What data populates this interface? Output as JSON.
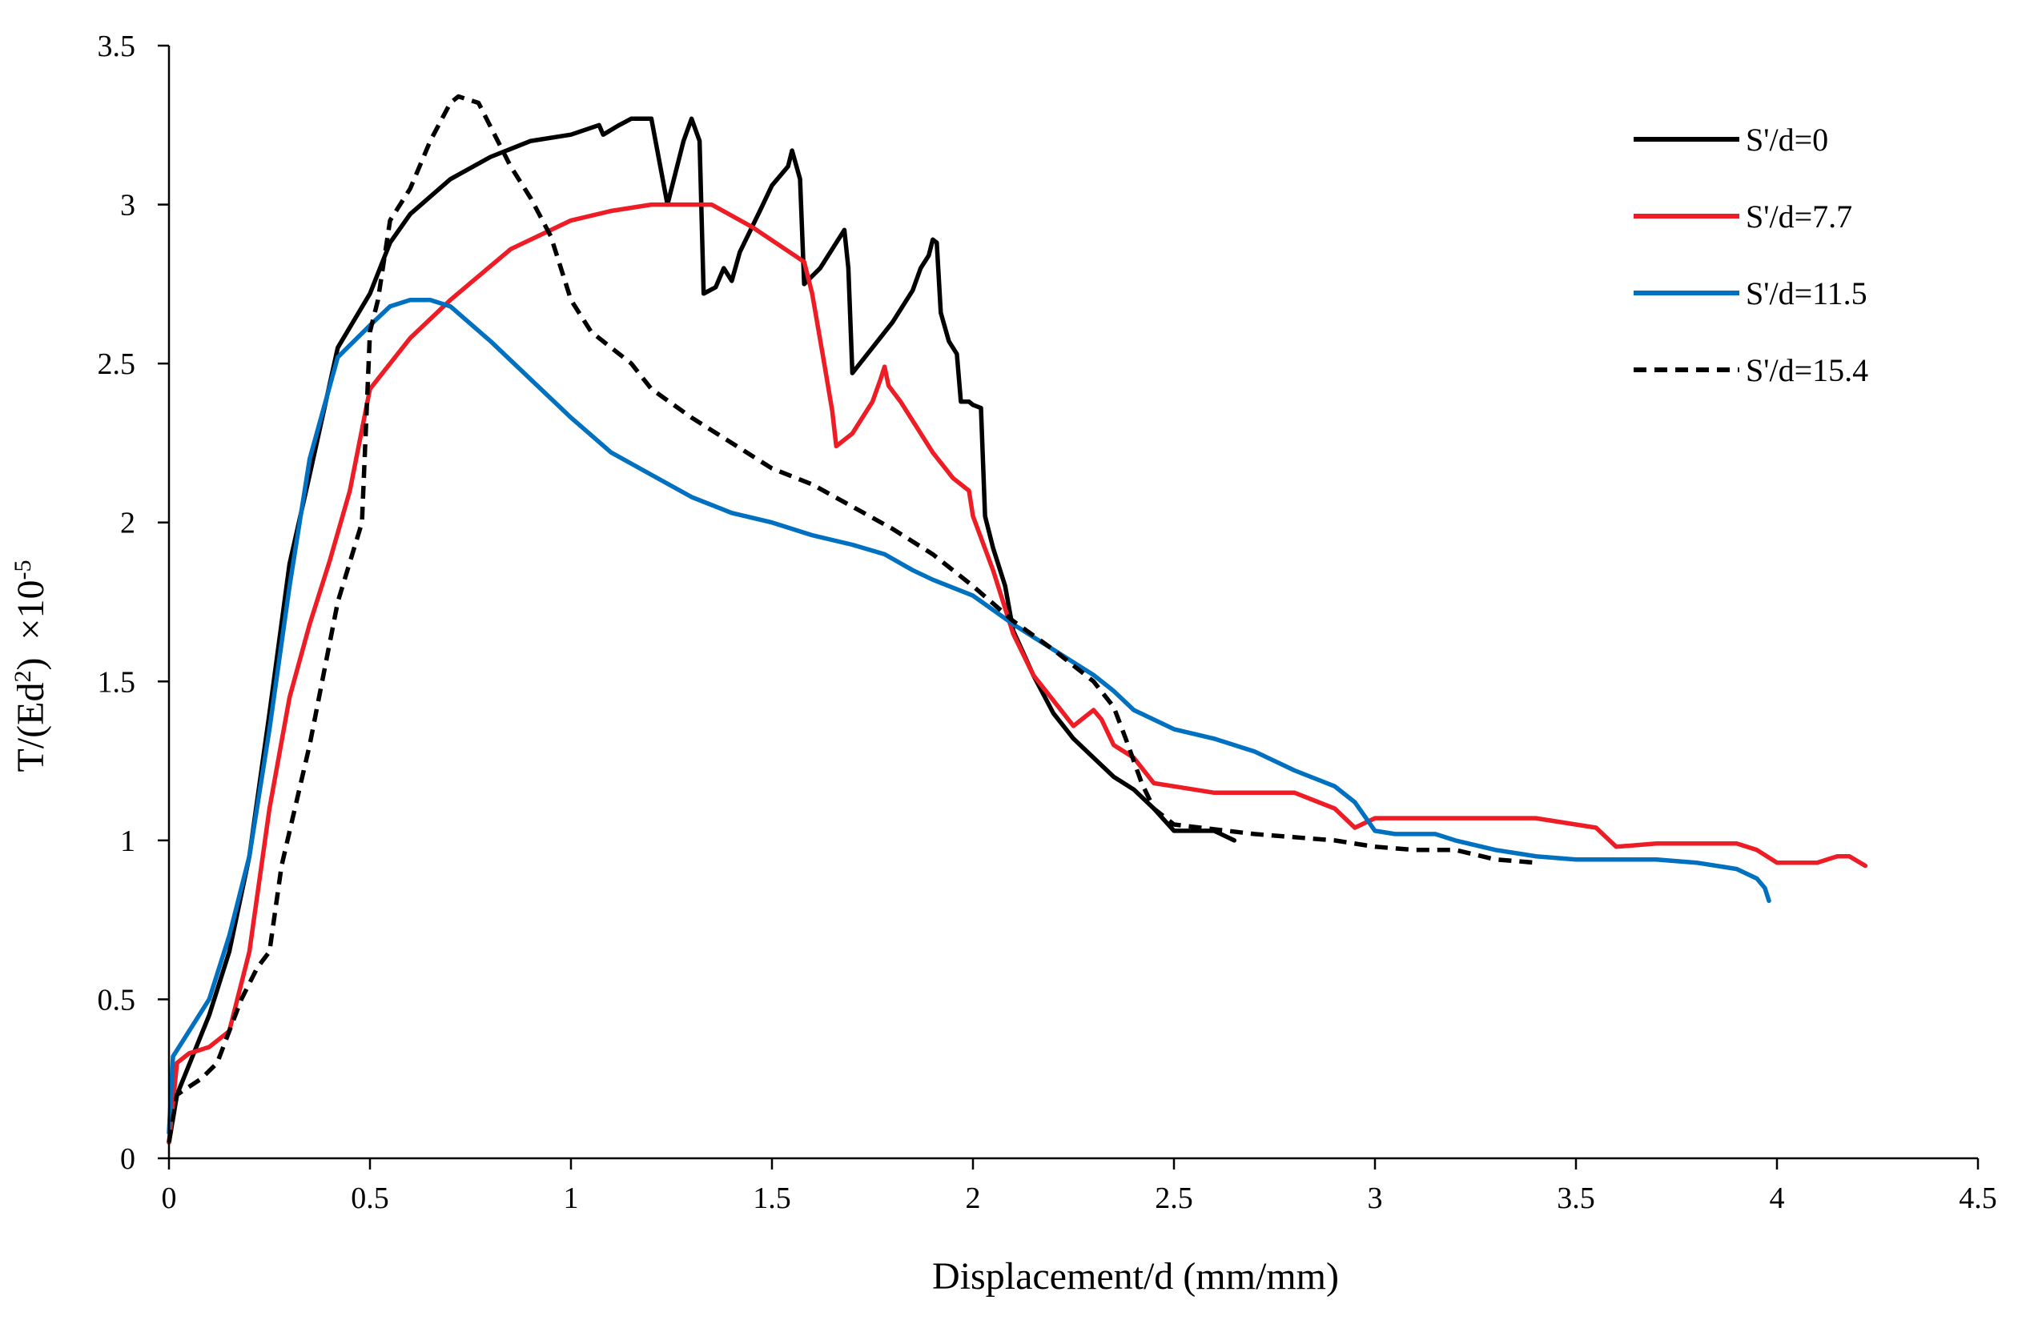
{
  "chart_data": {
    "type": "line",
    "title": "",
    "xlabel": "Displacement/d (mm/mm)",
    "ylabel": {
      "base": "T/(Ed",
      "sup": "2",
      "close": ")",
      "mult": "×10",
      "exp": "-5"
    },
    "xlim": [
      0,
      4.5
    ],
    "ylim": [
      0,
      3.5
    ],
    "x_ticks": [
      0,
      0.5,
      1,
      1.5,
      2,
      2.5,
      3,
      3.5,
      4,
      4.5
    ],
    "y_ticks": [
      0,
      0.5,
      1,
      1.5,
      2,
      2.5,
      3,
      3.5
    ],
    "x_tick_labels": [
      "0",
      "0.5",
      "1",
      "1.5",
      "2",
      "2.5",
      "3",
      "3.5",
      "4",
      "4.5"
    ],
    "y_tick_labels": [
      "0",
      "0.5",
      "1",
      "1.5",
      "2",
      "2.5",
      "3",
      "3.5"
    ],
    "grid": false,
    "legend_position": "top-right",
    "series": [
      {
        "name": "S'/d=0",
        "color": "#000000",
        "dash": "solid",
        "points": [
          [
            0,
            0.05
          ],
          [
            0.02,
            0.2
          ],
          [
            0.1,
            0.45
          ],
          [
            0.15,
            0.65
          ],
          [
            0.2,
            0.95
          ],
          [
            0.25,
            1.4
          ],
          [
            0.3,
            1.87
          ],
          [
            0.35,
            2.15
          ],
          [
            0.42,
            2.55
          ],
          [
            0.5,
            2.72
          ],
          [
            0.55,
            2.88
          ],
          [
            0.6,
            2.97
          ],
          [
            0.7,
            3.08
          ],
          [
            0.8,
            3.15
          ],
          [
            0.9,
            3.2
          ],
          [
            1.0,
            3.22
          ],
          [
            1.07,
            3.25
          ],
          [
            1.08,
            3.22
          ],
          [
            1.12,
            3.25
          ],
          [
            1.15,
            3.27
          ],
          [
            1.2,
            3.27
          ],
          [
            1.24,
            3.0
          ],
          [
            1.28,
            3.2
          ],
          [
            1.3,
            3.27
          ],
          [
            1.32,
            3.2
          ],
          [
            1.33,
            2.72
          ],
          [
            1.36,
            2.74
          ],
          [
            1.38,
            2.8
          ],
          [
            1.4,
            2.76
          ],
          [
            1.42,
            2.85
          ],
          [
            1.47,
            2.98
          ],
          [
            1.5,
            3.06
          ],
          [
            1.54,
            3.12
          ],
          [
            1.55,
            3.17
          ],
          [
            1.57,
            3.08
          ],
          [
            1.58,
            2.75
          ],
          [
            1.62,
            2.8
          ],
          [
            1.68,
            2.92
          ],
          [
            1.69,
            2.8
          ],
          [
            1.7,
            2.47
          ],
          [
            1.75,
            2.55
          ],
          [
            1.8,
            2.63
          ],
          [
            1.85,
            2.73
          ],
          [
            1.87,
            2.8
          ],
          [
            1.89,
            2.84
          ],
          [
            1.9,
            2.89
          ],
          [
            1.91,
            2.88
          ],
          [
            1.92,
            2.66
          ],
          [
            1.94,
            2.57
          ],
          [
            1.96,
            2.53
          ],
          [
            1.97,
            2.38
          ],
          [
            1.99,
            2.38
          ],
          [
            2.0,
            2.37
          ],
          [
            2.02,
            2.36
          ],
          [
            2.03,
            2.02
          ],
          [
            2.05,
            1.92
          ],
          [
            2.08,
            1.8
          ],
          [
            2.1,
            1.66
          ],
          [
            2.15,
            1.52
          ],
          [
            2.2,
            1.4
          ],
          [
            2.25,
            1.32
          ],
          [
            2.3,
            1.26
          ],
          [
            2.35,
            1.2
          ],
          [
            2.4,
            1.16
          ],
          [
            2.45,
            1.1
          ],
          [
            2.5,
            1.03
          ],
          [
            2.6,
            1.03
          ],
          [
            2.65,
            1.0
          ]
        ]
      },
      {
        "name": "S'/d=7.7",
        "color": "#ee1c25",
        "dash": "solid",
        "points": [
          [
            0,
            0.05
          ],
          [
            0.02,
            0.3
          ],
          [
            0.05,
            0.33
          ],
          [
            0.1,
            0.35
          ],
          [
            0.15,
            0.4
          ],
          [
            0.2,
            0.65
          ],
          [
            0.25,
            1.1
          ],
          [
            0.3,
            1.45
          ],
          [
            0.35,
            1.68
          ],
          [
            0.4,
            1.88
          ],
          [
            0.45,
            2.1
          ],
          [
            0.5,
            2.42
          ],
          [
            0.6,
            2.58
          ],
          [
            0.7,
            2.7
          ],
          [
            0.85,
            2.86
          ],
          [
            1.0,
            2.95
          ],
          [
            1.1,
            2.98
          ],
          [
            1.2,
            3.0
          ],
          [
            1.35,
            3.0
          ],
          [
            1.45,
            2.93
          ],
          [
            1.58,
            2.82
          ],
          [
            1.6,
            2.72
          ],
          [
            1.63,
            2.5
          ],
          [
            1.65,
            2.35
          ],
          [
            1.66,
            2.24
          ],
          [
            1.7,
            2.28
          ],
          [
            1.75,
            2.38
          ],
          [
            1.77,
            2.45
          ],
          [
            1.78,
            2.49
          ],
          [
            1.79,
            2.43
          ],
          [
            1.82,
            2.38
          ],
          [
            1.85,
            2.32
          ],
          [
            1.9,
            2.22
          ],
          [
            1.95,
            2.14
          ],
          [
            1.99,
            2.1
          ],
          [
            2.0,
            2.02
          ],
          [
            2.05,
            1.85
          ],
          [
            2.1,
            1.65
          ],
          [
            2.15,
            1.52
          ],
          [
            2.2,
            1.44
          ],
          [
            2.25,
            1.36
          ],
          [
            2.3,
            1.41
          ],
          [
            2.32,
            1.38
          ],
          [
            2.35,
            1.3
          ],
          [
            2.4,
            1.26
          ],
          [
            2.45,
            1.18
          ],
          [
            2.5,
            1.17
          ],
          [
            2.6,
            1.15
          ],
          [
            2.8,
            1.15
          ],
          [
            2.9,
            1.1
          ],
          [
            2.95,
            1.04
          ],
          [
            3.0,
            1.07
          ],
          [
            3.2,
            1.07
          ],
          [
            3.4,
            1.07
          ],
          [
            3.55,
            1.04
          ],
          [
            3.6,
            0.98
          ],
          [
            3.7,
            0.99
          ],
          [
            3.8,
            0.99
          ],
          [
            3.9,
            0.99
          ],
          [
            3.95,
            0.97
          ],
          [
            4.0,
            0.93
          ],
          [
            4.1,
            0.93
          ],
          [
            4.15,
            0.95
          ],
          [
            4.18,
            0.95
          ],
          [
            4.22,
            0.92
          ]
        ]
      },
      {
        "name": "S'/d=11.5",
        "color": "#0070c0",
        "dash": "solid",
        "points": [
          [
            0,
            0.08
          ],
          [
            0.01,
            0.32
          ],
          [
            0.05,
            0.4
          ],
          [
            0.1,
            0.5
          ],
          [
            0.15,
            0.7
          ],
          [
            0.2,
            0.95
          ],
          [
            0.25,
            1.35
          ],
          [
            0.3,
            1.8
          ],
          [
            0.35,
            2.2
          ],
          [
            0.42,
            2.52
          ],
          [
            0.5,
            2.62
          ],
          [
            0.55,
            2.68
          ],
          [
            0.6,
            2.7
          ],
          [
            0.65,
            2.7
          ],
          [
            0.7,
            2.68
          ],
          [
            0.8,
            2.57
          ],
          [
            0.9,
            2.45
          ],
          [
            1.0,
            2.33
          ],
          [
            1.1,
            2.22
          ],
          [
            1.2,
            2.15
          ],
          [
            1.3,
            2.08
          ],
          [
            1.4,
            2.03
          ],
          [
            1.5,
            2.0
          ],
          [
            1.6,
            1.96
          ],
          [
            1.7,
            1.93
          ],
          [
            1.78,
            1.9
          ],
          [
            1.85,
            1.85
          ],
          [
            1.9,
            1.82
          ],
          [
            2.0,
            1.77
          ],
          [
            2.1,
            1.68
          ],
          [
            2.2,
            1.6
          ],
          [
            2.3,
            1.52
          ],
          [
            2.35,
            1.47
          ],
          [
            2.4,
            1.41
          ],
          [
            2.5,
            1.35
          ],
          [
            2.6,
            1.32
          ],
          [
            2.7,
            1.28
          ],
          [
            2.8,
            1.22
          ],
          [
            2.9,
            1.17
          ],
          [
            2.95,
            1.12
          ],
          [
            3.0,
            1.03
          ],
          [
            3.05,
            1.02
          ],
          [
            3.15,
            1.02
          ],
          [
            3.2,
            1.0
          ],
          [
            3.3,
            0.97
          ],
          [
            3.4,
            0.95
          ],
          [
            3.5,
            0.94
          ],
          [
            3.6,
            0.94
          ],
          [
            3.7,
            0.94
          ],
          [
            3.8,
            0.93
          ],
          [
            3.9,
            0.91
          ],
          [
            3.95,
            0.88
          ],
          [
            3.97,
            0.85
          ],
          [
            3.98,
            0.81
          ]
        ]
      },
      {
        "name": "S'/d=15.4",
        "color": "#000000",
        "dash": "dashed",
        "points": [
          [
            0,
            0.05
          ],
          [
            0.02,
            0.2
          ],
          [
            0.08,
            0.25
          ],
          [
            0.12,
            0.3
          ],
          [
            0.18,
            0.5
          ],
          [
            0.22,
            0.6
          ],
          [
            0.25,
            0.65
          ],
          [
            0.28,
            0.92
          ],
          [
            0.35,
            1.3
          ],
          [
            0.42,
            1.75
          ],
          [
            0.48,
            2.0
          ],
          [
            0.5,
            2.6
          ],
          [
            0.52,
            2.7
          ],
          [
            0.55,
            2.95
          ],
          [
            0.6,
            3.05
          ],
          [
            0.65,
            3.2
          ],
          [
            0.7,
            3.32
          ],
          [
            0.72,
            3.34
          ],
          [
            0.77,
            3.32
          ],
          [
            0.85,
            3.12
          ],
          [
            0.9,
            3.02
          ],
          [
            0.95,
            2.9
          ],
          [
            1.0,
            2.7
          ],
          [
            1.05,
            2.6
          ],
          [
            1.1,
            2.55
          ],
          [
            1.15,
            2.5
          ],
          [
            1.2,
            2.42
          ],
          [
            1.3,
            2.33
          ],
          [
            1.4,
            2.25
          ],
          [
            1.5,
            2.17
          ],
          [
            1.6,
            2.12
          ],
          [
            1.7,
            2.05
          ],
          [
            1.8,
            1.98
          ],
          [
            1.9,
            1.9
          ],
          [
            2.0,
            1.8
          ],
          [
            2.1,
            1.69
          ],
          [
            2.2,
            1.6
          ],
          [
            2.3,
            1.5
          ],
          [
            2.35,
            1.42
          ],
          [
            2.38,
            1.32
          ],
          [
            2.42,
            1.18
          ],
          [
            2.45,
            1.1
          ],
          [
            2.5,
            1.05
          ],
          [
            2.7,
            1.02
          ],
          [
            2.9,
            1.0
          ],
          [
            3.0,
            0.98
          ],
          [
            3.1,
            0.97
          ],
          [
            3.2,
            0.97
          ],
          [
            3.3,
            0.94
          ],
          [
            3.4,
            0.93
          ]
        ]
      }
    ]
  }
}
